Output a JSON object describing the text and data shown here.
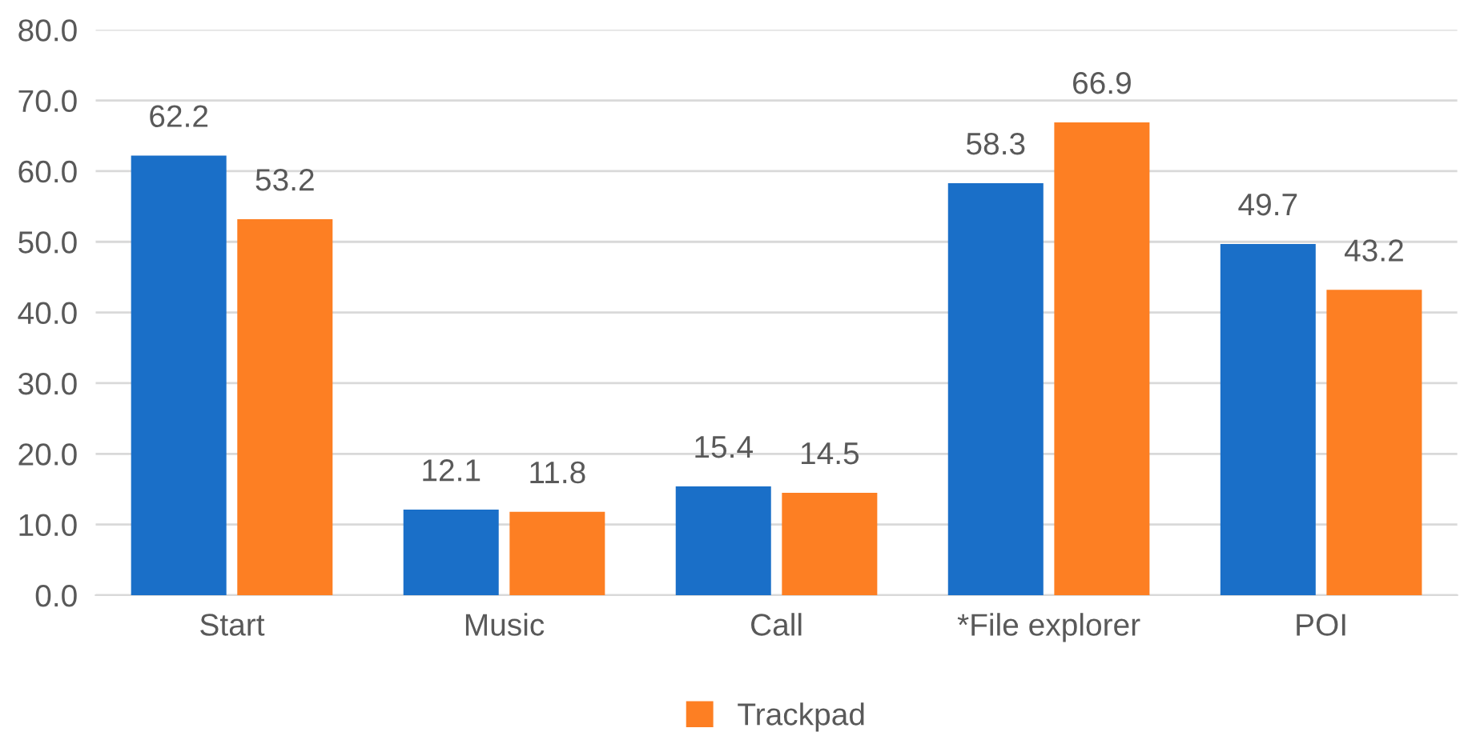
{
  "chart_data": {
    "type": "bar",
    "categories": [
      "Start",
      "Music",
      "Call",
      "*File explorer",
      "POI"
    ],
    "series": [
      {
        "color": "#1a6fc8",
        "values": [
          62.2,
          12.1,
          15.4,
          58.3,
          49.7
        ]
      },
      {
        "name": "Trackpad",
        "color": "#fd7f23",
        "values": [
          53.2,
          11.8,
          14.5,
          66.9,
          43.2
        ]
      }
    ],
    "ylim": [
      0,
      80
    ],
    "yticks": [
      {
        "value": 0,
        "label": "0.0"
      },
      {
        "value": 10,
        "label": "10.0"
      },
      {
        "value": 20,
        "label": "20.0"
      },
      {
        "value": 30,
        "label": "30.0"
      },
      {
        "value": 40,
        "label": "40.0"
      },
      {
        "value": 50,
        "label": "50.0"
      },
      {
        "value": 60,
        "label": "60.0"
      },
      {
        "value": 70,
        "label": "70.0"
      },
      {
        "value": 80,
        "label": "80.0"
      }
    ],
    "grid": "y",
    "legend": "bottom",
    "data_labels": true
  }
}
